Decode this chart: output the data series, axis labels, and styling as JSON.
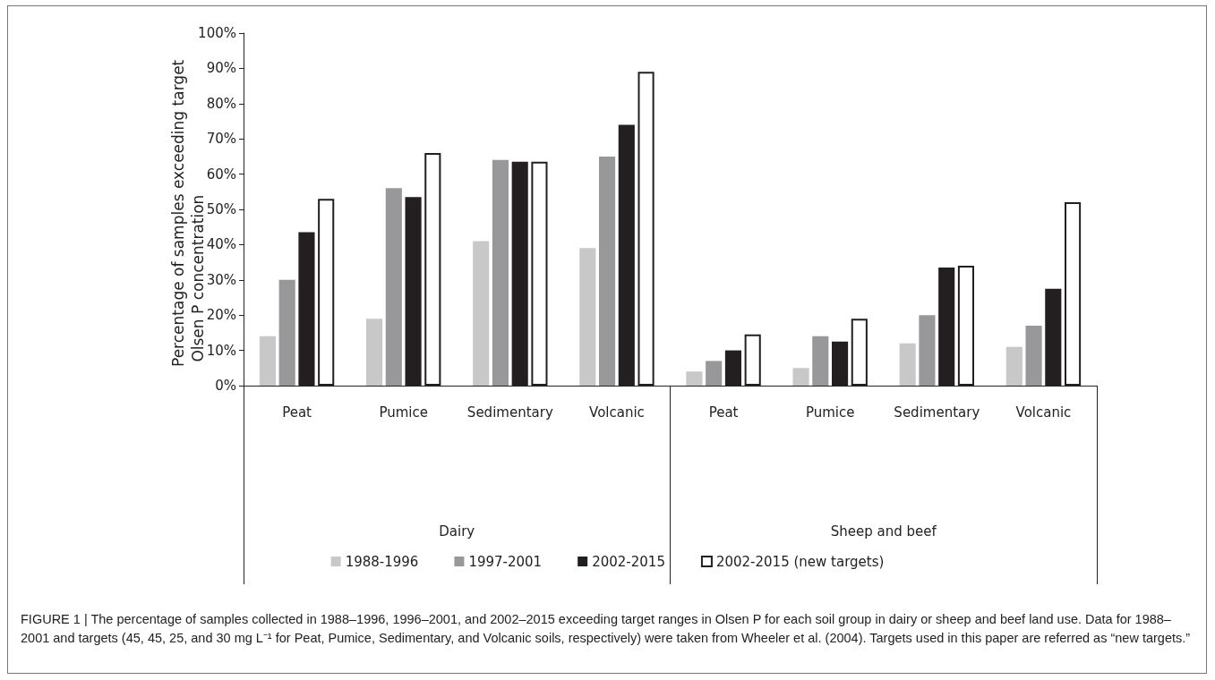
{
  "chart_data": {
    "type": "bar",
    "ylabel": "Percentage of samples exceeding target Olsen P concentration",
    "categories": [
      "Peat",
      "Pumice",
      "Sedimentary",
      "Volcanic",
      "Peat",
      "Pumice",
      "Sedimentary",
      "Volcanic"
    ],
    "series": [
      {
        "name": "1988-1996",
        "color": "#c8c8c9",
        "values": [
          14,
          19,
          41,
          39,
          4,
          5,
          12,
          11
        ]
      },
      {
        "name": "1997-2001",
        "color": "#98989b",
        "values": [
          30,
          56,
          64,
          65,
          7,
          14,
          20,
          17
        ]
      },
      {
        "name": "2002-2015",
        "color": "#231f20",
        "values": [
          43.5,
          53.5,
          63.5,
          74,
          10,
          12.5,
          33.5,
          27.5
        ]
      },
      {
        "name": "2002-2015 (new targets)",
        "color": "#ffffff",
        "values": [
          53,
          66,
          63.5,
          89,
          14.5,
          19,
          34,
          52
        ]
      }
    ],
    "ylim": [
      0,
      100
    ],
    "yticks": [
      {
        "value": 0,
        "label": "0%"
      },
      {
        "value": 10,
        "label": "10%"
      },
      {
        "value": 20,
        "label": "20%"
      },
      {
        "value": 30,
        "label": "30%"
      },
      {
        "value": 40,
        "label": "40%"
      },
      {
        "value": 50,
        "label": "50%"
      },
      {
        "value": 60,
        "label": "60%"
      },
      {
        "value": 70,
        "label": "70%"
      },
      {
        "value": 80,
        "label": "80%"
      },
      {
        "value": 90,
        "label": "90%"
      },
      {
        "value": 100,
        "label": "100%"
      }
    ],
    "grid": false,
    "legend": "bottom",
    "annotations": [
      "Dairy",
      "Sheep and beef",
      "FIGURE 1 | The percentage of samples collected in 1988–1996, 1996–2001, and 2002–2015 exceeding target ranges in Olsen P for each soil group in dairy or sheep and beef land use. Data for 1988–2001 and targets (45, 45, 25, and 30 mg L⁻¹ for Peat, Pumice, Sedimentary, and Volcanic soils, respectively) were taken from Wheeler et al. (2004). Targets used in this paper are referred as “new targets.”"
    ]
  }
}
